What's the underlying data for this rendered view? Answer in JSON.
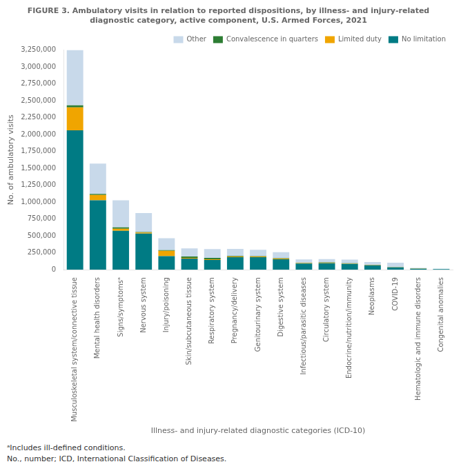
{
  "chart_data": {
    "type": "bar",
    "title": "FIGURE 3. Ambulatory visits in relation to reported dispositions, by illness- and injury-related\ndiagnostic category, active component, U.S. Armed Forces, 2021",
    "xlabel": "Illness- and injury-related diagnostic categories (ICD-10)",
    "ylabel": "No. of ambulatory visits",
    "annotations": [
      "ᵃIncludes ill-defined conditions.",
      "No., number; ICD, International Classification of Diseases."
    ],
    "categories": [
      "Musculoskeletal system/connective tissue",
      "Mental health disorders",
      "Signs/symptomsᵃ",
      "Nervous system",
      "Injury/poisoning",
      "Skin/subcutaneous tissue",
      "Respiratory system",
      "Pregnancy/delivery",
      "Genitourinary system",
      "Digestive system",
      "Infectious/parasitic diseases",
      "Circulatory system",
      "Endocrine/nutrition/immunity",
      "Neoplasms",
      "COVID-19",
      "Hematologic and immune disorders",
      "Congenital anomalies"
    ],
    "series": [
      {
        "name": "No limitation",
        "color": "#007b84",
        "values": [
          2060000,
          1025000,
          575000,
          535000,
          200000,
          165000,
          145000,
          185000,
          185000,
          155000,
          90000,
          95000,
          85000,
          65000,
          35000,
          15000,
          8000
        ]
      },
      {
        "name": "Limited duty",
        "color": "#f0a500",
        "values": [
          340000,
          80000,
          30000,
          15000,
          80000,
          10000,
          10000,
          10000,
          10000,
          10000,
          8000,
          8000,
          5000,
          5000,
          3000,
          2000,
          1000
        ]
      },
      {
        "name": "Convalescence in quarters",
        "color": "#2d7d33",
        "values": [
          30000,
          15000,
          20000,
          8000,
          10000,
          20000,
          20000,
          8000,
          5000,
          5000,
          5000,
          5000,
          5000,
          3000,
          1000,
          1000,
          500
        ]
      },
      {
        "name": "Other",
        "color": "#c8d9ea",
        "values": [
          820000,
          450000,
          400000,
          280000,
          175000,
          120000,
          130000,
          105000,
          95000,
          90000,
          50000,
          50000,
          55000,
          40000,
          65000,
          10000,
          5000
        ]
      }
    ],
    "stacked": true,
    "ylim": [
      0,
      3250000
    ],
    "yticks": [
      0,
      {
        "value": 250000,
        "label": "250,000"
      },
      {
        "value": 500000,
        "label": "500,000"
      },
      {
        "value": 750000,
        "label": "750,000"
      },
      {
        "value": 1000000,
        "label": "1,000,000"
      },
      {
        "value": 1250000,
        "label": "1,250,000"
      },
      {
        "value": 1500000,
        "label": "1,500,000"
      },
      {
        "value": 1750000,
        "label": "1,750,000"
      },
      {
        "value": 2000000,
        "label": "2,000,000"
      },
      {
        "value": 2250000,
        "label": "2,250,000"
      },
      {
        "value": 2500000,
        "label": "2,500,000"
      },
      {
        "value": 2750000,
        "label": "2,750,000"
      },
      {
        "value": 3000000,
        "label": "3,000,000"
      },
      {
        "value": 3250000,
        "label": "3,250,000"
      }
    ],
    "legend": "upper right",
    "grid": false
  }
}
